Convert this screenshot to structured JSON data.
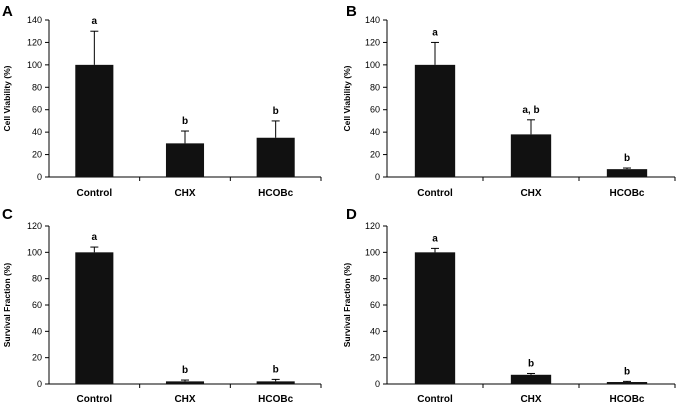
{
  "chart_data": [
    {
      "panel": "A",
      "type": "bar",
      "categories": [
        "Control",
        "CHX",
        "HCOBc"
      ],
      "values": [
        100,
        30,
        35
      ],
      "errors": [
        30,
        11,
        15
      ],
      "significance": [
        "a",
        "b",
        "b"
      ],
      "ylabel": "Cell Viability (%)",
      "ylim": [
        0,
        140
      ],
      "yticks": [
        0,
        20,
        40,
        60,
        80,
        100,
        120,
        140
      ]
    },
    {
      "panel": "B",
      "type": "bar",
      "categories": [
        "Control",
        "CHX",
        "HCOBc"
      ],
      "values": [
        100,
        38,
        7
      ],
      "errors": [
        20,
        13,
        1
      ],
      "significance": [
        "a",
        "a, b",
        "b"
      ],
      "ylabel": "Cell Viability (%)",
      "ylim": [
        0,
        140
      ],
      "yticks": [
        0,
        20,
        40,
        60,
        80,
        100,
        120,
        140
      ]
    },
    {
      "panel": "C",
      "type": "bar",
      "categories": [
        "Control",
        "CHX",
        "HCOBc"
      ],
      "values": [
        100,
        2,
        2
      ],
      "errors": [
        4,
        1,
        1.5
      ],
      "significance": [
        "a",
        "b",
        "b"
      ],
      "ylabel": "Survival Fraction (%)",
      "ylim": [
        0,
        120
      ],
      "yticks": [
        0,
        20,
        40,
        60,
        80,
        100,
        120
      ]
    },
    {
      "panel": "D",
      "type": "bar",
      "categories": [
        "Control",
        "CHX",
        "HCOBc"
      ],
      "values": [
        100,
        7,
        1.5
      ],
      "errors": [
        3,
        1,
        0.5
      ],
      "significance": [
        "a",
        "b",
        "b"
      ],
      "ylabel": "Survival Fraction (%)",
      "ylim": [
        0,
        120
      ],
      "yticks": [
        0,
        20,
        40,
        60,
        80,
        100,
        120
      ]
    }
  ],
  "colors": {
    "bar": "#111111",
    "axis": "#000000"
  }
}
